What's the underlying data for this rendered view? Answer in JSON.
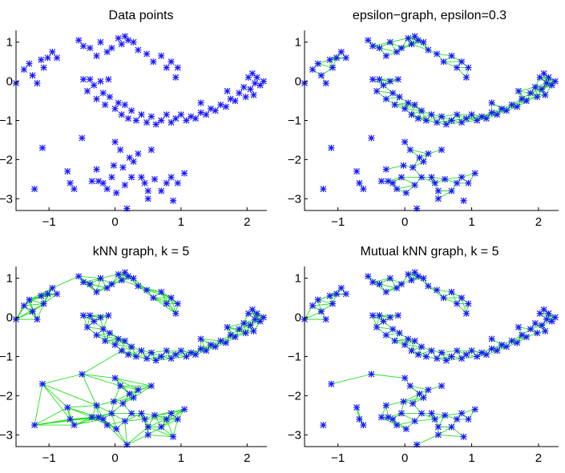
{
  "figure": {
    "edge_color": "#22e01c",
    "point_color": "#1a1aff"
  },
  "chart_data": [
    {
      "type": "scatter",
      "title": "Data points",
      "graph": "none",
      "xlim": [
        -1.5,
        2.3
      ],
      "ylim": [
        -3.3,
        1.3
      ],
      "xticks": [
        -1,
        0,
        1,
        2
      ],
      "yticks": [
        1,
        0,
        -1,
        -2,
        -3
      ],
      "xtick_labels": [
        "−1",
        "0",
        "1",
        "2"
      ],
      "ytick_labels": [
        "1",
        "0",
        "−1",
        "−2",
        "−3"
      ]
    },
    {
      "type": "scatter",
      "title": "epsilon−graph, epsilon=0.3",
      "graph": "epsilon",
      "epsilon": 0.3,
      "xlim": [
        -1.5,
        2.3
      ],
      "ylim": [
        -3.3,
        1.3
      ],
      "xticks": [
        -1,
        0,
        1,
        2
      ],
      "yticks": [
        1,
        0,
        -1,
        -2,
        -3
      ],
      "xtick_labels": [
        "−1",
        "0",
        "1",
        "2"
      ],
      "ytick_labels": [
        "1",
        "0",
        "−1",
        "−2",
        "−3"
      ]
    },
    {
      "type": "scatter",
      "title": "kNN graph, k = 5",
      "graph": "knn",
      "k": 5,
      "xlim": [
        -1.5,
        2.3
      ],
      "ylim": [
        -3.3,
        1.3
      ],
      "xticks": [
        -1,
        0,
        1,
        2
      ],
      "yticks": [
        1,
        0,
        -1,
        -2,
        -3
      ],
      "xtick_labels": [
        "−1",
        "0",
        "1",
        "2"
      ],
      "ytick_labels": [
        "1",
        "0",
        "−1",
        "−2",
        "−3"
      ]
    },
    {
      "type": "scatter",
      "title": "Mutual kNN graph, k = 5",
      "graph": "mutual",
      "k": 5,
      "xlim": [
        -1.5,
        2.3
      ],
      "ylim": [
        -3.3,
        1.3
      ],
      "xticks": [
        -1,
        0,
        1,
        2
      ],
      "yticks": [
        1,
        0,
        -1,
        -2,
        -3
      ],
      "xtick_labels": [
        "−1",
        "0",
        "1",
        "2"
      ],
      "ytick_labels": [
        "1",
        "0",
        "−1",
        "−2",
        "−3"
      ]
    }
  ],
  "points": [
    [
      -1.5,
      -0.05
    ],
    [
      -1.38,
      0.3
    ],
    [
      -1.3,
      0.45
    ],
    [
      -1.25,
      0.15
    ],
    [
      -1.18,
      -0.05
    ],
    [
      -1.12,
      0.55
    ],
    [
      -1.08,
      0.35
    ],
    [
      -1.02,
      0.6
    ],
    [
      -0.95,
      0.75
    ],
    [
      -0.88,
      0.6
    ],
    [
      -0.55,
      1.05
    ],
    [
      -0.48,
      0.9
    ],
    [
      -0.38,
      0.85
    ],
    [
      -0.28,
      0.65
    ],
    [
      -0.22,
      1.0
    ],
    [
      -0.12,
      0.75
    ],
    [
      -0.05,
      0.85
    ],
    [
      0.05,
      1.1
    ],
    [
      0.1,
      0.95
    ],
    [
      0.15,
      1.15
    ],
    [
      0.2,
      1.05
    ],
    [
      0.28,
      1.0
    ],
    [
      0.35,
      0.8
    ],
    [
      0.48,
      0.7
    ],
    [
      0.58,
      0.5
    ],
    [
      0.7,
      0.65
    ],
    [
      0.78,
      0.35
    ],
    [
      0.85,
      0.5
    ],
    [
      0.92,
      0.1
    ],
    [
      0.95,
      0.35
    ],
    [
      -0.48,
      0.05
    ],
    [
      -0.42,
      -0.25
    ],
    [
      -0.38,
      0.05
    ],
    [
      -0.32,
      -0.1
    ],
    [
      -0.28,
      -0.45
    ],
    [
      -0.22,
      0.0
    ],
    [
      -0.18,
      -0.3
    ],
    [
      -0.15,
      -0.6
    ],
    [
      -0.1,
      0.05
    ],
    [
      -0.08,
      -0.4
    ],
    [
      0.0,
      -0.7
    ],
    [
      0.05,
      -0.55
    ],
    [
      0.1,
      -0.85
    ],
    [
      0.15,
      -0.6
    ],
    [
      0.2,
      -0.95
    ],
    [
      0.25,
      -0.75
    ],
    [
      0.32,
      -1.0
    ],
    [
      0.4,
      -0.85
    ],
    [
      0.48,
      -1.05
    ],
    [
      0.55,
      -0.9
    ],
    [
      0.62,
      -1.1
    ],
    [
      0.7,
      -1.0
    ],
    [
      0.78,
      -0.85
    ],
    [
      0.85,
      -1.05
    ],
    [
      0.92,
      -0.95
    ],
    [
      1.0,
      -0.85
    ],
    [
      1.08,
      -1.0
    ],
    [
      1.15,
      -0.9
    ],
    [
      1.22,
      -0.95
    ],
    [
      1.3,
      -0.8
    ],
    [
      1.38,
      -0.85
    ],
    [
      1.45,
      -0.7
    ],
    [
      1.52,
      -0.75
    ],
    [
      1.6,
      -0.6
    ],
    [
      1.68,
      -0.65
    ],
    [
      1.75,
      -0.45
    ],
    [
      1.82,
      -0.5
    ],
    [
      1.88,
      -0.3
    ],
    [
      1.95,
      -0.15
    ],
    [
      1.98,
      -0.4
    ],
    [
      2.02,
      0.1
    ],
    [
      2.05,
      -0.2
    ],
    [
      2.08,
      0.2
    ],
    [
      2.12,
      -0.05
    ],
    [
      2.15,
      0.1
    ],
    [
      2.2,
      -0.1
    ],
    [
      2.25,
      0.0
    ],
    [
      2.1,
      -0.35
    ],
    [
      1.7,
      -0.25
    ],
    [
      1.3,
      -0.55
    ],
    [
      -1.1,
      -1.7
    ],
    [
      -1.22,
      -2.75
    ],
    [
      -0.72,
      -2.3
    ],
    [
      -0.68,
      -2.6
    ],
    [
      -0.62,
      -2.75
    ],
    [
      -0.5,
      -1.45
    ],
    [
      -0.28,
      -2.25
    ],
    [
      -0.25,
      -2.55
    ],
    [
      -0.18,
      -2.6
    ],
    [
      -0.12,
      -2.75
    ],
    [
      -0.05,
      -2.45
    ],
    [
      0.0,
      -1.55
    ],
    [
      0.02,
      -2.85
    ],
    [
      0.08,
      -1.75
    ],
    [
      0.12,
      -2.2
    ],
    [
      0.15,
      -2.65
    ],
    [
      0.18,
      -3.25
    ],
    [
      0.22,
      -1.95
    ],
    [
      0.28,
      -2.05
    ],
    [
      0.35,
      -1.85
    ],
    [
      0.45,
      -2.6
    ],
    [
      0.5,
      -2.8
    ],
    [
      0.55,
      -1.75
    ],
    [
      0.6,
      -2.5
    ],
    [
      0.7,
      -2.8
    ],
    [
      0.78,
      -2.6
    ],
    [
      0.85,
      -2.45
    ],
    [
      0.88,
      -3.05
    ],
    [
      0.95,
      -2.6
    ],
    [
      1.05,
      -2.35
    ],
    [
      0.4,
      -2.45
    ],
    [
      0.25,
      -2.45
    ],
    [
      -0.35,
      -2.55
    ],
    [
      0.5,
      -3.0
    ],
    [
      -0.02,
      -2.15
    ]
  ]
}
